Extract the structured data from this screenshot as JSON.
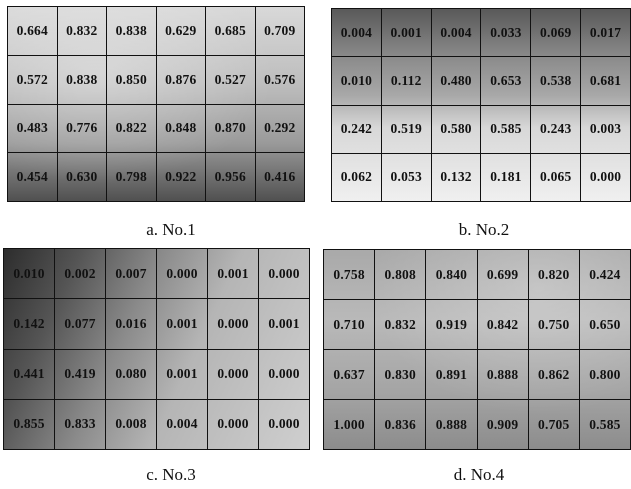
{
  "panels": [
    {
      "caption": "a. No.1",
      "rows": [
        [
          "0.664",
          "0.832",
          "0.838",
          "0.629",
          "0.685",
          "0.709"
        ],
        [
          "0.572",
          "0.838",
          "0.850",
          "0.876",
          "0.527",
          "0.576"
        ],
        [
          "0.483",
          "0.776",
          "0.822",
          "0.848",
          "0.870",
          "0.292"
        ],
        [
          "0.454",
          "0.630",
          "0.798",
          "0.922",
          "0.956",
          "0.416"
        ]
      ]
    },
    {
      "caption": "b. No.2",
      "rows": [
        [
          "0.004",
          "0.001",
          "0.004",
          "0.033",
          "0.069",
          "0.017"
        ],
        [
          "0.010",
          "0.112",
          "0.480",
          "0.653",
          "0.538",
          "0.681"
        ],
        [
          "0.242",
          "0.519",
          "0.580",
          "0.585",
          "0.243",
          "0.003"
        ],
        [
          "0.062",
          "0.053",
          "0.132",
          "0.181",
          "0.065",
          "0.000"
        ]
      ]
    },
    {
      "caption": "c. No.3",
      "rows": [
        [
          "0.010",
          "0.002",
          "0.007",
          "0.000",
          "0.001",
          "0.000"
        ],
        [
          "0.142",
          "0.077",
          "0.016",
          "0.001",
          "0.000",
          "0.001"
        ],
        [
          "0.441",
          "0.419",
          "0.080",
          "0.001",
          "0.000",
          "0.000"
        ],
        [
          "0.855",
          "0.833",
          "0.008",
          "0.004",
          "0.000",
          "0.000"
        ]
      ]
    },
    {
      "caption": "d. No.4",
      "rows": [
        [
          "0.758",
          "0.808",
          "0.840",
          "0.699",
          "0.820",
          "0.424"
        ],
        [
          "0.710",
          "0.832",
          "0.919",
          "0.842",
          "0.750",
          "0.650"
        ],
        [
          "0.637",
          "0.830",
          "0.891",
          "0.888",
          "0.862",
          "0.800"
        ],
        [
          "1.000",
          "0.836",
          "0.888",
          "0.909",
          "0.705",
          "0.585"
        ]
      ]
    }
  ]
}
